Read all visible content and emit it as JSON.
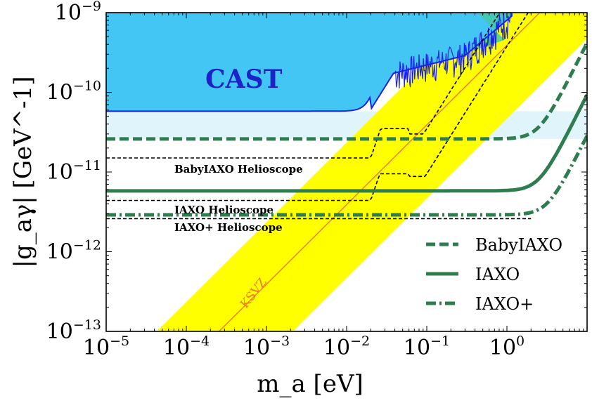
{
  "chart_data": {
    "type": "line",
    "xlabel": "m_a [eV]",
    "ylabel": "|g_aγ| [GeV^-1]",
    "x_scale": "log",
    "y_scale": "log",
    "xlim": [
      1e-05,
      10
    ],
    "ylim": [
      1e-13,
      1e-09
    ],
    "x_ticks": [
      {
        "value": 1e-05,
        "base": "10",
        "exp": "−5"
      },
      {
        "value": 0.0001,
        "base": "10",
        "exp": "−4"
      },
      {
        "value": 0.001,
        "base": "10",
        "exp": "−3"
      },
      {
        "value": 0.01,
        "base": "10",
        "exp": "−2"
      },
      {
        "value": 0.1,
        "base": "10",
        "exp": "−1"
      },
      {
        "value": 1,
        "base": "10",
        "exp": "0"
      }
    ],
    "y_ticks": [
      {
        "value": 1e-13,
        "base": "10",
        "exp": "−13"
      },
      {
        "value": 1e-12,
        "base": "10",
        "exp": "−12"
      },
      {
        "value": 1e-11,
        "base": "10",
        "exp": "−11"
      },
      {
        "value": 1e-10,
        "base": "10",
        "exp": "−10"
      },
      {
        "value": 1e-09,
        "base": "10",
        "exp": "−9"
      }
    ],
    "regions": [
      {
        "name": "CAST",
        "label": "CAST",
        "color": "#44c6f5",
        "flat_g": 5.8e-11
      },
      {
        "name": "Light region",
        "color": "#e0f4fb"
      },
      {
        "name": "Yellow axion band",
        "color": "#ffff00"
      },
      {
        "name": "Green overlap",
        "color": "#44c8a8"
      }
    ],
    "ksvz": {
      "label": "KSVZ",
      "color": "#f07a2a",
      "g_over_m": 3.9e-10
    },
    "band": {
      "low_factor": 0.12,
      "high_factor": 6.0
    },
    "series": [
      {
        "name": "BabyIAXO",
        "style": "dashed",
        "color": "#2e7d4f",
        "flat_g": 2.6e-11,
        "knee_m": 2.5
      },
      {
        "name": "IAXO",
        "style": "solid",
        "color": "#2e7d4f",
        "flat_g": 5.8e-12,
        "knee_m": 2.5
      },
      {
        "name": "IAXO+",
        "style": "dashdot",
        "color": "#2e7d4f",
        "flat_g": 2.9e-12,
        "knee_m": 3.2
      }
    ],
    "thin_dashed_curves": [
      {
        "name": "BabyIAXO thin",
        "flat_g": 1.5e-11,
        "bump_g": 3.5e-11
      },
      {
        "name": "IAXO thin",
        "flat_g": 4.4e-12,
        "bump_g": 9.5e-12
      },
      {
        "name": "IAXO+ thin",
        "flat_g": 2.6e-12
      }
    ],
    "annotations": [
      "BabyIAXO Helioscope",
      "IAXO Helioscope",
      "IAXO+ Helioscope"
    ],
    "legend": {
      "position": "bottom-right",
      "entries": [
        "BabyIAXO",
        "IAXO",
        "IAXO+"
      ]
    }
  }
}
